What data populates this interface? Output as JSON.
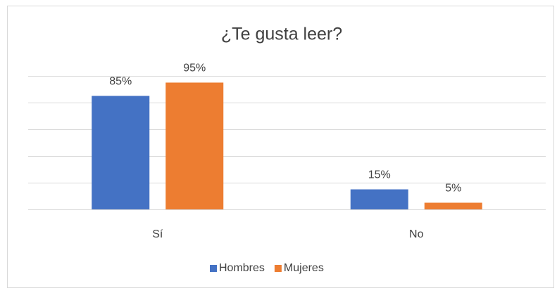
{
  "chart_data": {
    "type": "bar",
    "title": "¿Te gusta leer?",
    "categories": [
      "Sí",
      "No"
    ],
    "series": [
      {
        "name": "Hombres",
        "color": "#4472c4",
        "values": [
          85,
          15
        ],
        "value_labels": [
          "85%",
          "15%"
        ]
      },
      {
        "name": "Mujeres",
        "color": "#ed7d31",
        "values": [
          95,
          5
        ],
        "value_labels": [
          "95%",
          "5%"
        ]
      }
    ],
    "ylim": [
      0,
      100
    ],
    "yticks": [
      0,
      20,
      40,
      60,
      80,
      100
    ],
    "grid": true,
    "legend": "bottom"
  }
}
